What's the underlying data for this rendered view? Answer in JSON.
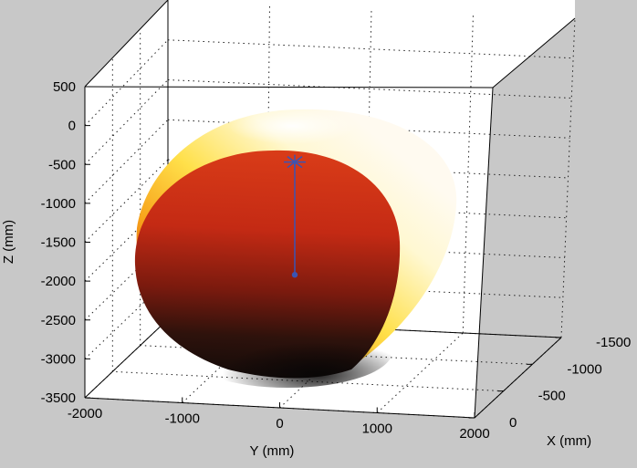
{
  "chart_data": {
    "type": "surface3d",
    "title": "",
    "xlabel": "X (mm)",
    "ylabel": "Y (mm)",
    "zlabel": "Z (mm)",
    "xlim": [
      -1500,
      0
    ],
    "ylim": [
      -2000,
      2000
    ],
    "zlim": [
      -3500,
      500
    ],
    "x_ticks": [
      "0",
      "-500",
      "-1000",
      "-1500"
    ],
    "y_ticks": [
      "-2000",
      "-1000",
      "0",
      "1000",
      "2000"
    ],
    "z_ticks": [
      "500",
      "0",
      "-500",
      "-1000",
      "-1500",
      "-2000",
      "-2500",
      "-3000",
      "-3500"
    ],
    "grid": true,
    "colormap": "hot",
    "colors": {
      "background": "#c8c8c8",
      "plot_area": "#ffffff",
      "marker": "#3a54b4"
    },
    "ellipsoid": {
      "center": {
        "x": -600,
        "y": 200,
        "z": -1450
      },
      "top_marker": {
        "x": -600,
        "y": 200,
        "z": 0,
        "symbol": "asterisk"
      },
      "center_marker": {
        "x": -600,
        "y": 200,
        "z": -1450,
        "symbol": "dot"
      }
    }
  }
}
